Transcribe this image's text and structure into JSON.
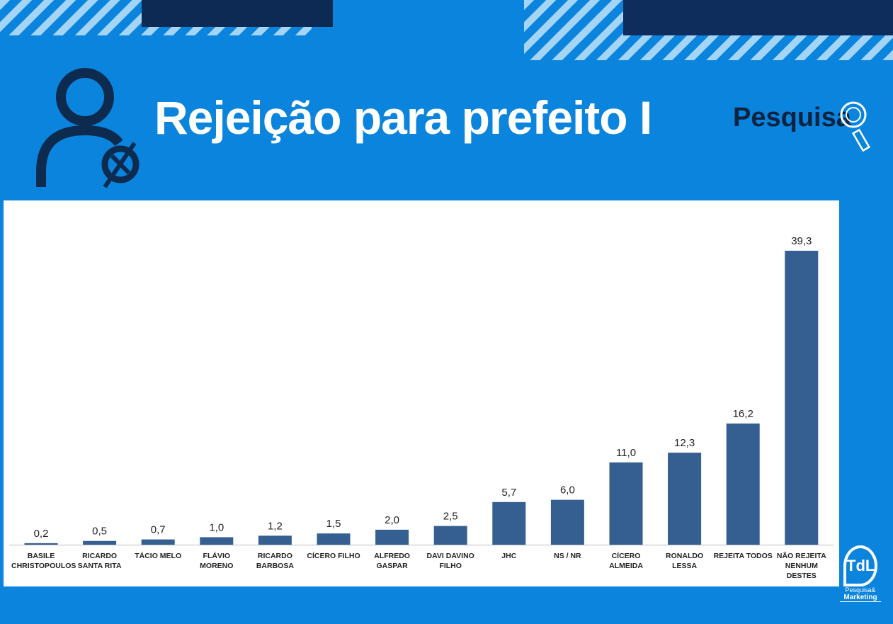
{
  "header": {
    "title": "Rejeição para prefeito I",
    "brand": "Pesquisa",
    "logo_text": "TdL",
    "logo_sub1": "Pesquisa&",
    "logo_sub2": "Marketing"
  },
  "colors": {
    "background": "#0a84dc",
    "bar": "#355f91"
  },
  "chart_data": {
    "type": "bar",
    "title": "Rejeição para prefeito I",
    "categories": [
      "BASILE CHRISTOPOULOS",
      "RICARDO SANTA RITA",
      "TÁCIO MELO",
      "FLÁVIO MORENO",
      "RICARDO BARBOSA",
      "CÍCERO FILHO",
      "ALFREDO GASPAR",
      "DAVI DAVINO FILHO",
      "JHC",
      "NS / NR",
      "CÍCERO ALMEIDA",
      "RONALDO LESSA",
      "REJEITA TODOS",
      "NÃO REJEITA NENHUM DESTES"
    ],
    "values": [
      0.2,
      0.5,
      0.7,
      1.0,
      1.2,
      1.5,
      2.0,
      2.5,
      5.7,
      6.0,
      11.0,
      12.3,
      16.2,
      39.3
    ],
    "value_labels": [
      "0,2",
      "0,5",
      "0,7",
      "1,0",
      "1,2",
      "1,5",
      "2,0",
      "2,5",
      "5,7",
      "6,0",
      "11,0",
      "12,3",
      "16,2",
      "39,3"
    ],
    "xlabel": "",
    "ylabel": "",
    "ylim": [
      0,
      40
    ],
    "grid": false
  }
}
